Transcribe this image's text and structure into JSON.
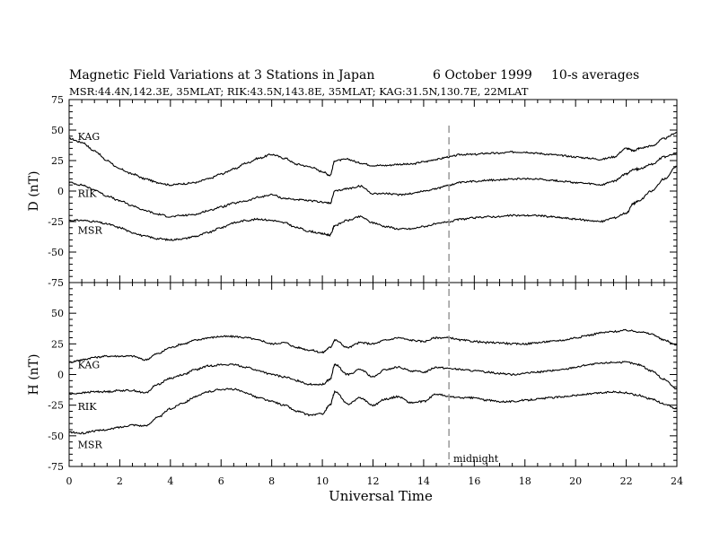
{
  "header": {
    "title": "Magnetic Field Variations at 3 Stations in Japan",
    "date": "6   October 1999",
    "averaging": "10-s averages",
    "stations_line": "MSR:44.4N,142.3E, 35MLAT;  RIK:43.5N,143.8E, 35MLAT;  KAG:31.5N,130.7E, 22MLAT"
  },
  "chart_data": {
    "type": "line",
    "xlabel": "Universal Time",
    "xlim": [
      0,
      24
    ],
    "xticks": [
      0,
      2,
      4,
      6,
      8,
      10,
      12,
      14,
      16,
      18,
      20,
      22,
      24
    ],
    "xtick_labels": [
      "0",
      "2",
      "4",
      "6",
      "8",
      "10",
      "12",
      "14",
      "16",
      "18",
      "20",
      "22",
      "24"
    ],
    "marker": {
      "x": 15,
      "label": "midnight",
      "style": "dashed",
      "color": "#9e9e9e"
    },
    "panels": [
      {
        "ylabel": "D (nT)",
        "ylim": [
          -75,
          75
        ],
        "yticks": [
          75,
          50,
          25,
          0,
          -25,
          -50,
          -75
        ],
        "ytick_labels": [
          "75",
          "50",
          "25",
          "0",
          "-25",
          "-50",
          "-75"
        ],
        "series": [
          {
            "name": "KAG",
            "label_pos": [
              0.2,
              45
            ],
            "x": [
              0,
              0.5,
              1,
              1.5,
              2,
              2.5,
              3,
              3.5,
              4,
              4.5,
              5,
              5.5,
              6,
              6.5,
              7,
              7.5,
              8,
              8.5,
              9,
              9.5,
              10,
              10.3,
              10.5,
              11,
              11.5,
              12,
              12.5,
              13,
              13.5,
              14,
              14.5,
              15,
              15.5,
              16,
              16.5,
              17,
              17.5,
              18,
              18.5,
              19,
              19.5,
              20,
              20.5,
              21,
              21.5,
              22,
              22.3,
              22.5,
              23,
              23.5,
              24
            ],
            "values": [
              43,
              40,
              33,
              25,
              18,
              14,
              10,
              7,
              5,
              6,
              7,
              10,
              14,
              18,
              23,
              27,
              30,
              27,
              22,
              20,
              16,
              13,
              25,
              26,
              23,
              21,
              21,
              22,
              22,
              24,
              26,
              28,
              30,
              30,
              31,
              31,
              32,
              32,
              31,
              30,
              29,
              28,
              27,
              26,
              28,
              35,
              33,
              35,
              37,
              43,
              48
            ]
          },
          {
            "name": "RIK",
            "label_pos": [
              0.2,
              -2
            ],
            "x": [
              0,
              0.5,
              1,
              1.5,
              2,
              2.5,
              3,
              3.5,
              4,
              4.5,
              5,
              5.5,
              6,
              6.5,
              7,
              7.5,
              8,
              8.5,
              9,
              9.5,
              10,
              10.3,
              10.5,
              11,
              11.5,
              12,
              12.5,
              13,
              13.5,
              14,
              14.5,
              15,
              15.5,
              16,
              16.5,
              17,
              17.5,
              18,
              18.5,
              19,
              19.5,
              20,
              20.5,
              21,
              21.5,
              22,
              22.3,
              22.5,
              23,
              23.5,
              24
            ],
            "values": [
              7,
              5,
              1,
              -4,
              -8,
              -12,
              -16,
              -19,
              -21,
              -20,
              -19,
              -16,
              -13,
              -10,
              -8,
              -5,
              -3,
              -6,
              -7,
              -8,
              -9,
              -10,
              0,
              2,
              4,
              -2,
              -2,
              -3,
              -2,
              0,
              2,
              5,
              7,
              8,
              9,
              9,
              10,
              10,
              10,
              9,
              8,
              7,
              6,
              5,
              8,
              14,
              18,
              18,
              22,
              28,
              31
            ]
          },
          {
            "name": "MSR",
            "label_pos": [
              0.2,
              -32
            ],
            "x": [
              0,
              0.5,
              1,
              1.5,
              2,
              2.5,
              3,
              3.5,
              4,
              4.5,
              5,
              5.5,
              6,
              6.5,
              7,
              7.5,
              8,
              8.5,
              9,
              9.5,
              10,
              10.3,
              10.5,
              11,
              11.5,
              12,
              12.5,
              13,
              13.5,
              14,
              14.5,
              15,
              15.5,
              16,
              16.5,
              17,
              17.5,
              18,
              18.5,
              19,
              19.5,
              20,
              20.5,
              21,
              21.5,
              22,
              22.3,
              22.5,
              23,
              23.5,
              24
            ],
            "values": [
              -24,
              -24,
              -25,
              -27,
              -30,
              -34,
              -37,
              -39,
              -40,
              -39,
              -37,
              -34,
              -30,
              -26,
              -24,
              -23,
              -24,
              -26,
              -30,
              -33,
              -35,
              -36,
              -28,
              -24,
              -21,
              -26,
              -29,
              -31,
              -31,
              -29,
              -27,
              -25,
              -23,
              -22,
              -21,
              -21,
              -20,
              -20,
              -20,
              -21,
              -22,
              -23,
              -24,
              -25,
              -22,
              -18,
              -10,
              -8,
              0,
              10,
              20
            ]
          }
        ]
      },
      {
        "ylabel": "H (nT)",
        "ylim": [
          -75,
          75
        ],
        "yticks": [
          75,
          50,
          25,
          0,
          -25,
          -50,
          -75
        ],
        "ytick_labels": [
          "75",
          "50",
          "25",
          "0",
          "-25",
          "-50",
          "-75"
        ],
        "series": [
          {
            "name": "KAG",
            "label_pos": [
              0.2,
              8
            ],
            "x": [
              0,
              0.5,
              1,
              1.5,
              2,
              2.5,
              3,
              3.5,
              4,
              4.5,
              5,
              5.5,
              6,
              6.5,
              7,
              7.5,
              8,
              8.5,
              9,
              9.5,
              10,
              10.3,
              10.5,
              11,
              11.5,
              12,
              12.5,
              13,
              13.5,
              14,
              14.5,
              15,
              15.5,
              16,
              16.5,
              17,
              17.5,
              18,
              18.5,
              19,
              19.5,
              20,
              20.5,
              21,
              21.5,
              22,
              22.5,
              23,
              23.5,
              24
            ],
            "values": [
              10,
              12,
              14,
              15,
              15,
              15,
              12,
              17,
              22,
              25,
              28,
              30,
              31,
              31,
              30,
              28,
              25,
              26,
              22,
              20,
              18,
              22,
              28,
              22,
              26,
              25,
              28,
              30,
              28,
              27,
              30,
              30,
              28,
              27,
              26,
              26,
              25,
              25,
              26,
              27,
              28,
              30,
              32,
              34,
              35,
              36,
              35,
              33,
              28,
              24
            ]
          },
          {
            "name": "RIK",
            "label_pos": [
              0.2,
              -26
            ],
            "x": [
              0,
              0.5,
              1,
              1.5,
              2,
              2.5,
              3,
              3.5,
              4,
              4.5,
              5,
              5.5,
              6,
              6.5,
              7,
              7.5,
              8,
              8.5,
              9,
              9.5,
              10,
              10.3,
              10.5,
              11,
              11.5,
              12,
              12.5,
              13,
              13.5,
              14,
              14.5,
              15,
              15.5,
              16,
              16.5,
              17,
              17.5,
              18,
              18.5,
              19,
              19.5,
              20,
              20.5,
              21,
              21.5,
              22,
              22.5,
              23,
              23.5,
              24
            ],
            "values": [
              -16,
              -15,
              -14,
              -14,
              -13,
              -13,
              -15,
              -8,
              -3,
              0,
              4,
              7,
              8,
              8,
              6,
              3,
              0,
              -2,
              -5,
              -8,
              -8,
              -4,
              8,
              0,
              4,
              -2,
              4,
              6,
              3,
              2,
              6,
              5,
              4,
              3,
              2,
              1,
              0,
              1,
              2,
              3,
              4,
              6,
              8,
              9,
              10,
              10,
              8,
              3,
              -4,
              -12
            ]
          },
          {
            "name": "MSR",
            "label_pos": [
              0.2,
              -57
            ],
            "x": [
              0,
              0.5,
              1,
              1.5,
              2,
              2.5,
              3,
              3.5,
              4,
              4.5,
              5,
              5.5,
              6,
              6.5,
              7,
              7.5,
              8,
              8.5,
              9,
              9.5,
              10,
              10.3,
              10.5,
              11,
              11.5,
              12,
              12.5,
              13,
              13.5,
              14,
              14.5,
              15,
              15.5,
              16,
              16.5,
              17,
              17.5,
              18,
              18.5,
              19,
              19.5,
              20,
              20.5,
              21,
              21.5,
              22,
              22.5,
              23,
              23.5,
              24
            ],
            "values": [
              -47,
              -48,
              -46,
              -45,
              -43,
              -41,
              -42,
              -35,
              -28,
              -23,
              -18,
              -14,
              -12,
              -12,
              -15,
              -19,
              -22,
              -25,
              -30,
              -33,
              -32,
              -25,
              -14,
              -24,
              -19,
              -25,
              -20,
              -18,
              -23,
              -22,
              -16,
              -18,
              -19,
              -19,
              -21,
              -22,
              -22,
              -21,
              -20,
              -19,
              -18,
              -17,
              -16,
              -15,
              -14,
              -15,
              -17,
              -20,
              -24,
              -28
            ]
          }
        ]
      }
    ]
  }
}
